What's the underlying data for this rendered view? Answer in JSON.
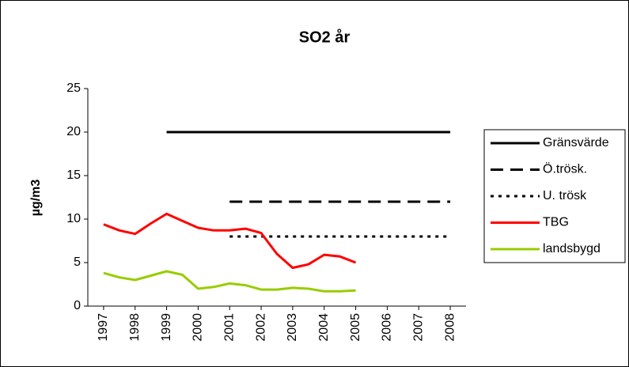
{
  "chart_data": {
    "type": "line",
    "title": "SO2 år",
    "y_label": "µg/m3",
    "x": [
      1997,
      1997.5,
      1998,
      1998.5,
      1999,
      1999.5,
      2000,
      2000.5,
      2001,
      2001.5,
      2002,
      2002.5,
      2003,
      2003.5,
      2004,
      2004.5,
      2005,
      2005.5,
      2006,
      2006.5,
      2007,
      2007.5,
      2008
    ],
    "series": [
      {
        "name": "Gränsvärde",
        "color": "#000000",
        "dash": "solid",
        "values": [
          null,
          null,
          null,
          null,
          20,
          20,
          20,
          20,
          20,
          20,
          20,
          20,
          20,
          20,
          20,
          20,
          20,
          20,
          20,
          20,
          20,
          20,
          20
        ]
      },
      {
        "name": "Ö.trösk.",
        "color": "#000000",
        "dash": "dashed",
        "values": [
          null,
          null,
          null,
          null,
          null,
          null,
          null,
          null,
          12,
          12,
          12,
          12,
          12,
          12,
          12,
          12,
          12,
          12,
          12,
          12,
          12,
          12,
          12
        ]
      },
      {
        "name": "U. trösk",
        "color": "#000000",
        "dash": "dotted",
        "values": [
          null,
          null,
          null,
          null,
          null,
          null,
          null,
          null,
          8,
          8,
          8,
          8,
          8,
          8,
          8,
          8,
          8,
          8,
          8,
          8,
          8,
          8,
          8
        ]
      },
      {
        "name": "TBG",
        "color": "#ff0000",
        "dash": "solid",
        "values": [
          9.4,
          8.7,
          8.3,
          9.5,
          10.6,
          9.8,
          9.0,
          8.7,
          8.7,
          8.9,
          8.4,
          6.0,
          4.4,
          4.8,
          5.9,
          5.7,
          5.0,
          null,
          null,
          null,
          null,
          null,
          null
        ]
      },
      {
        "name": "landsbygd",
        "color": "#99cc00",
        "dash": "solid",
        "values": [
          3.8,
          3.3,
          3.0,
          3.5,
          4.0,
          3.6,
          2.0,
          2.2,
          2.6,
          2.4,
          1.9,
          1.9,
          2.1,
          2.0,
          1.7,
          1.7,
          1.8,
          null,
          null,
          null,
          null,
          null,
          null
        ]
      }
    ],
    "xlim": [
      1996.5,
      2008.5
    ],
    "xticks": [
      1997,
      1998,
      1999,
      2000,
      2001,
      2002,
      2003,
      2004,
      2005,
      2006,
      2007,
      2008
    ],
    "ylim": [
      0,
      25
    ],
    "yticks": [
      0,
      5,
      10,
      15,
      20,
      25
    ],
    "grid": false,
    "legend": "right"
  }
}
